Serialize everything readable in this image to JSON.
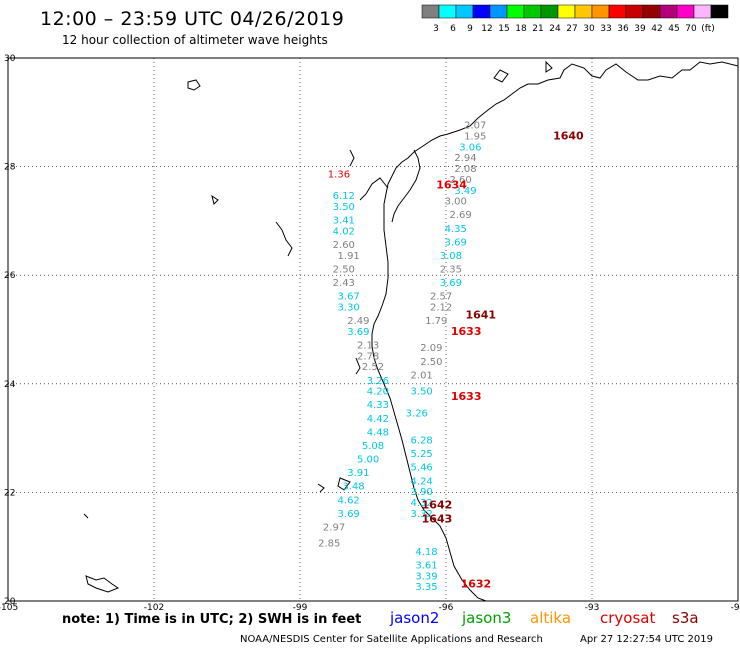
{
  "header": {
    "title": "12:00 – 23:59 UTC 04/26/2019",
    "subtitle": "12 hour collection of altimeter wave heights"
  },
  "legend": {
    "unit": "(ft)",
    "colors": [
      "#808080",
      "#00ffff",
      "#00c8ff",
      "#0000ff",
      "#0096ff",
      "#00ff00",
      "#00c800",
      "#009600",
      "#ffff00",
      "#ffc800",
      "#ff9600",
      "#ff0000",
      "#c80000",
      "#960000",
      "#b40078",
      "#ff00c8",
      "#ffb4ff",
      "#000000"
    ],
    "labels": [
      "3",
      "6",
      "9",
      "12",
      "15",
      "18",
      "21",
      "24",
      "27",
      "30",
      "33",
      "36",
      "39",
      "42",
      "45",
      "70"
    ]
  },
  "axes": {
    "lon_labels": [
      "-105",
      "-102",
      "-99",
      "-96",
      "-93",
      "-90"
    ],
    "lat_labels": [
      "30",
      "28",
      "26",
      "24",
      "22",
      "20"
    ]
  },
  "satellites": [
    {
      "name": "jason2",
      "color": "#0000ff"
    },
    {
      "name": "jason3",
      "color": "#00a000"
    },
    {
      "name": "altika",
      "color": "#ff9600"
    },
    {
      "name": "cryosat",
      "color": "#e00000"
    },
    {
      "name": "s3a",
      "color": "#8b0000"
    }
  ],
  "footer": {
    "note": "note:  1) Time is in UTC;  2) SWH is in feet",
    "credit": "NOAA/NESDIS Center for Satellite Applications and Research",
    "timestamp": "Apr 27 12:27:54 UTC 2019"
  },
  "pass_labels": [
    {
      "text": "1640",
      "lon": -93.8,
      "lat": 28.5,
      "color": "#8b0000"
    },
    {
      "text": "1634",
      "lon": -96.2,
      "lat": 27.6,
      "color": "#e00000"
    },
    {
      "text": "1641",
      "lon": -95.6,
      "lat": 25.2,
      "color": "#8b0000"
    },
    {
      "text": "1633",
      "lon": -95.9,
      "lat": 24.9,
      "color": "#e00000"
    },
    {
      "text": "1633",
      "lon": -95.9,
      "lat": 23.7,
      "color": "#e00000"
    },
    {
      "text": "1642",
      "lon": -96.5,
      "lat": 21.7,
      "color": "#8b0000"
    },
    {
      "text": "1643",
      "lon": -96.5,
      "lat": 21.45,
      "color": "#8b0000"
    },
    {
      "text": "1632",
      "lon": -95.7,
      "lat": 20.25,
      "color": "#e00000"
    }
  ],
  "swh_values": [
    {
      "text": "2.07",
      "lon": -95.4,
      "lat": 28.7,
      "color": "#808080"
    },
    {
      "text": "1.95",
      "lon": -95.4,
      "lat": 28.5,
      "color": "#808080"
    },
    {
      "text": "3.06",
      "lon": -95.5,
      "lat": 28.3,
      "color": "#00c8e6"
    },
    {
      "text": "2.94",
      "lon": -95.6,
      "lat": 28.1,
      "color": "#808080"
    },
    {
      "text": "2.08",
      "lon": -95.6,
      "lat": 27.9,
      "color": "#808080"
    },
    {
      "text": "2.60",
      "lon": -95.7,
      "lat": 27.7,
      "color": "#808080"
    },
    {
      "text": "3.49",
      "lon": -95.6,
      "lat": 27.5,
      "color": "#00c8e6"
    },
    {
      "text": "3.00",
      "lon": -95.8,
      "lat": 27.3,
      "color": "#808080"
    },
    {
      "text": "2.69",
      "lon": -95.7,
      "lat": 27.05,
      "color": "#808080"
    },
    {
      "text": "4.35",
      "lon": -95.8,
      "lat": 26.8,
      "color": "#00c8e6"
    },
    {
      "text": "3.69",
      "lon": -95.8,
      "lat": 26.55,
      "color": "#00c8e6"
    },
    {
      "text": "3.08",
      "lon": -95.9,
      "lat": 26.3,
      "color": "#00c8e6"
    },
    {
      "text": "2.35",
      "lon": -95.9,
      "lat": 26.05,
      "color": "#808080"
    },
    {
      "text": "3.69",
      "lon": -95.9,
      "lat": 25.8,
      "color": "#00c8e6"
    },
    {
      "text": "2.57",
      "lon": -96.1,
      "lat": 25.55,
      "color": "#808080"
    },
    {
      "text": "2.12",
      "lon": -96.1,
      "lat": 25.35,
      "color": "#808080"
    },
    {
      "text": "1.79",
      "lon": -96.2,
      "lat": 25.1,
      "color": "#808080"
    },
    {
      "text": "2.09",
      "lon": -96.3,
      "lat": 24.6,
      "color": "#808080"
    },
    {
      "text": "2.50",
      "lon": -96.3,
      "lat": 24.35,
      "color": "#808080"
    },
    {
      "text": "2.01",
      "lon": -96.5,
      "lat": 24.1,
      "color": "#808080"
    },
    {
      "text": "3.50",
      "lon": -96.5,
      "lat": 23.8,
      "color": "#00c8e6"
    },
    {
      "text": "3.26",
      "lon": -96.6,
      "lat": 23.4,
      "color": "#00c8e6"
    },
    {
      "text": "6.28",
      "lon": -96.5,
      "lat": 22.9,
      "color": "#00c8e6"
    },
    {
      "text": "5.25",
      "lon": -96.5,
      "lat": 22.65,
      "color": "#00c8e6"
    },
    {
      "text": "5.46",
      "lon": -96.5,
      "lat": 22.4,
      "color": "#00c8e6"
    },
    {
      "text": "4.24",
      "lon": -96.5,
      "lat": 22.15,
      "color": "#00c8e6"
    },
    {
      "text": "3.90",
      "lon": -96.5,
      "lat": 21.95,
      "color": "#00c8e6"
    },
    {
      "text": "4.32",
      "lon": -96.5,
      "lat": 21.75,
      "color": "#00c8e6"
    },
    {
      "text": "3.32",
      "lon": -96.5,
      "lat": 21.55,
      "color": "#00c8e6"
    },
    {
      "text": "4.18",
      "lon": -96.4,
      "lat": 20.85,
      "color": "#00c8e6"
    },
    {
      "text": "3.61",
      "lon": -96.4,
      "lat": 20.6,
      "color": "#00c8e6"
    },
    {
      "text": "3.39",
      "lon": -96.4,
      "lat": 20.4,
      "color": "#00c8e6"
    },
    {
      "text": "3.35",
      "lon": -96.4,
      "lat": 20.2,
      "color": "#00c8e6"
    },
    {
      "text": "1.36",
      "lon": -98.2,
      "lat": 27.8,
      "color": "#e00000"
    },
    {
      "text": "6.12",
      "lon": -98.1,
      "lat": 27.4,
      "color": "#00c8e6"
    },
    {
      "text": "3.50",
      "lon": -98.1,
      "lat": 27.2,
      "color": "#00c8e6"
    },
    {
      "text": "3.41",
      "lon": -98.1,
      "lat": 26.95,
      "color": "#00c8e6"
    },
    {
      "text": "4.02",
      "lon": -98.1,
      "lat": 26.75,
      "color": "#00c8e6"
    },
    {
      "text": "2.60",
      "lon": -98.1,
      "lat": 26.5,
      "color": "#808080"
    },
    {
      "text": "1.91",
      "lon": -98.0,
      "lat": 26.3,
      "color": "#808080"
    },
    {
      "text": "2.50",
      "lon": -98.1,
      "lat": 26.05,
      "color": "#808080"
    },
    {
      "text": "2.43",
      "lon": -98.1,
      "lat": 25.8,
      "color": "#808080"
    },
    {
      "text": "3.67",
      "lon": -98.0,
      "lat": 25.55,
      "color": "#00c8e6"
    },
    {
      "text": "3.30",
      "lon": -98.0,
      "lat": 25.35,
      "color": "#00c8e6"
    },
    {
      "text": "2.49",
      "lon": -97.8,
      "lat": 25.1,
      "color": "#808080"
    },
    {
      "text": "3.69",
      "lon": -97.8,
      "lat": 24.9,
      "color": "#00c8e6"
    },
    {
      "text": "2.13",
      "lon": -97.6,
      "lat": 24.65,
      "color": "#808080"
    },
    {
      "text": "2.78",
      "lon": -97.6,
      "lat": 24.45,
      "color": "#808080"
    },
    {
      "text": "2.52",
      "lon": -97.5,
      "lat": 24.25,
      "color": "#808080"
    },
    {
      "text": "3.26",
      "lon": -97.4,
      "lat": 24.0,
      "color": "#00c8e6"
    },
    {
      "text": "4.20",
      "lon": -97.4,
      "lat": 23.8,
      "color": "#00c8e6"
    },
    {
      "text": "4.33",
      "lon": -97.4,
      "lat": 23.55,
      "color": "#00c8e6"
    },
    {
      "text": "4.42",
      "lon": -97.4,
      "lat": 23.3,
      "color": "#00c8e6"
    },
    {
      "text": "4.48",
      "lon": -97.4,
      "lat": 23.05,
      "color": "#00c8e6"
    },
    {
      "text": "5.08",
      "lon": -97.5,
      "lat": 22.8,
      "color": "#00c8e6"
    },
    {
      "text": "5.00",
      "lon": -97.6,
      "lat": 22.55,
      "color": "#00c8e6"
    },
    {
      "text": "3.91",
      "lon": -97.8,
      "lat": 22.3,
      "color": "#00c8e6"
    },
    {
      "text": "3.48",
      "lon": -97.9,
      "lat": 22.05,
      "color": "#00c8e6"
    },
    {
      "text": "4.62",
      "lon": -98.0,
      "lat": 21.8,
      "color": "#00c8e6"
    },
    {
      "text": "3.69",
      "lon": -98.0,
      "lat": 21.55,
      "color": "#00c8e6"
    },
    {
      "text": "2.97",
      "lon": -98.3,
      "lat": 21.3,
      "color": "#808080"
    },
    {
      "text": "2.85",
      "lon": -98.4,
      "lat": 21.0,
      "color": "#808080"
    }
  ]
}
